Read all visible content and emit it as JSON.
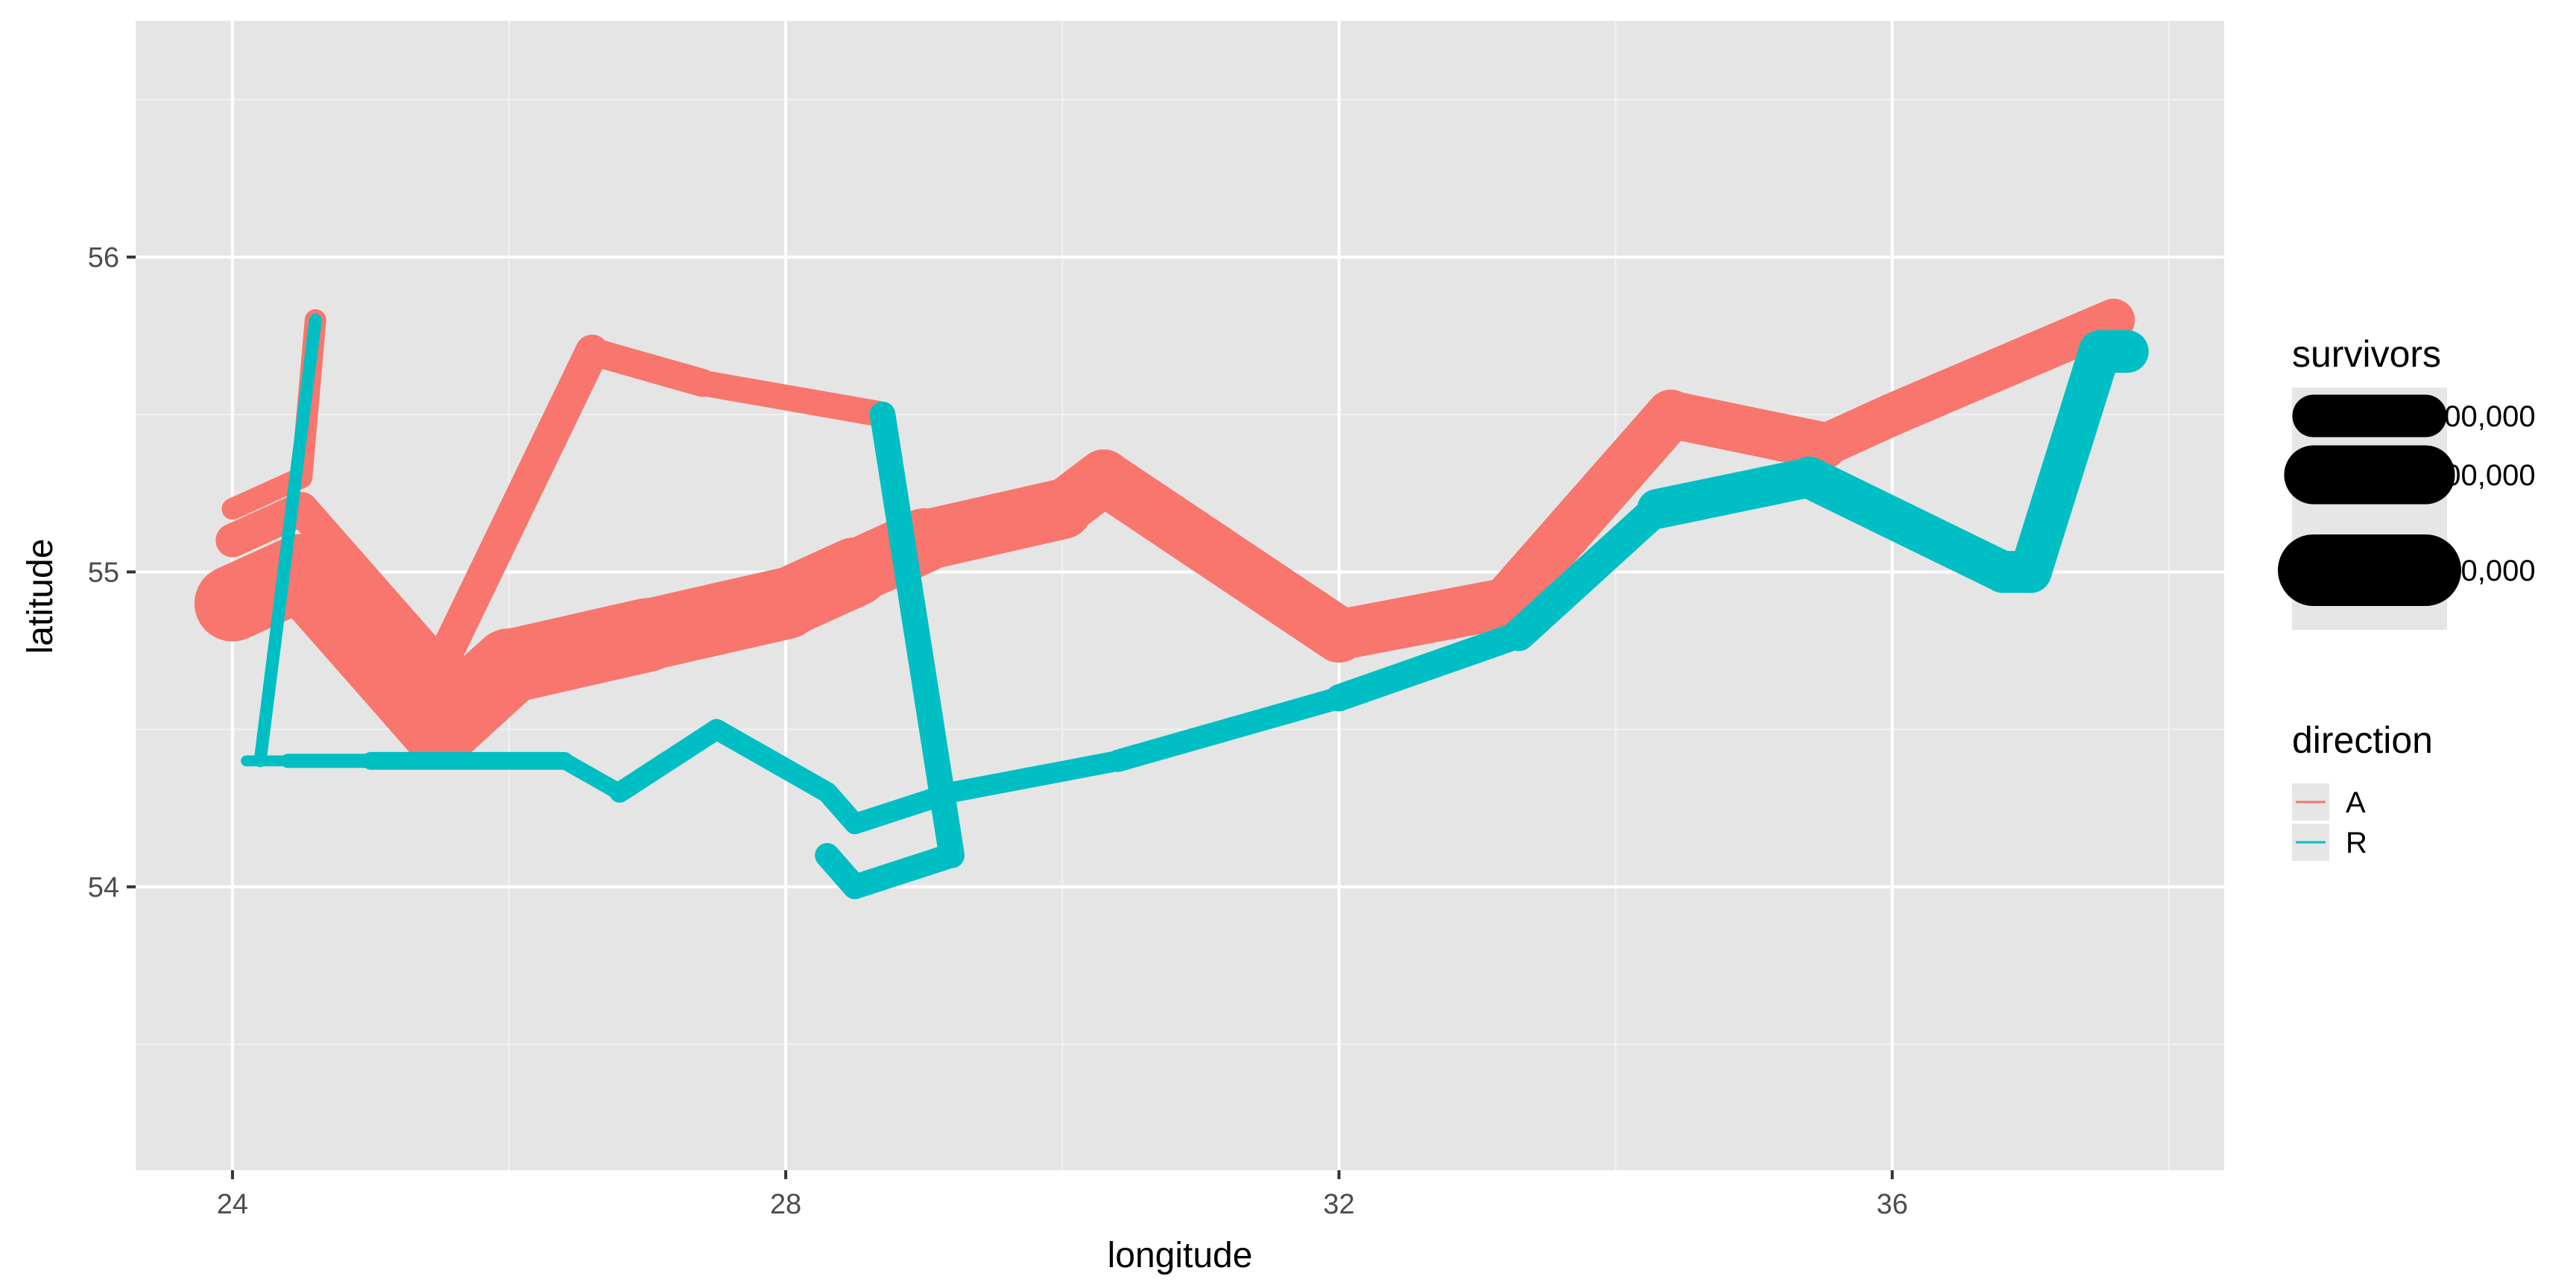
{
  "chart_data": {
    "type": "line",
    "title": "",
    "xlabel": "longitude",
    "ylabel": "latitude",
    "xlim": [
      23.3,
      38.4
    ],
    "ylim": [
      53.1,
      56.75
    ],
    "x_ticks": [
      24,
      28,
      32,
      36
    ],
    "y_ticks": [
      54,
      55,
      56
    ],
    "x_minor": [
      26,
      30,
      34,
      38
    ],
    "y_minor": [
      53.5,
      54.5,
      55.5,
      56.5
    ],
    "grid": true,
    "panel_color": "#e5e5e5",
    "legend_position": "right",
    "size_legend": {
      "title": "survivors",
      "breaks": [
        100000,
        200000,
        300000
      ],
      "labels": [
        "100,000",
        "200,000",
        "300,000"
      ]
    },
    "color_legend": {
      "title": "direction",
      "entries": [
        {
          "key": "A",
          "label": "A",
          "color": "#F8766D"
        },
        {
          "key": "R",
          "label": "R",
          "color": "#00BFC4"
        }
      ]
    },
    "series": [
      {
        "direction": "A",
        "color": "#F8766D",
        "points": [
          {
            "x": 24.0,
            "y": 54.9,
            "survivors": 340000
          },
          {
            "x": 24.5,
            "y": 55.0,
            "survivors": 340000
          },
          {
            "x": 25.5,
            "y": 54.5,
            "survivors": 340000
          },
          {
            "x": 26.0,
            "y": 54.7,
            "survivors": 320000
          },
          {
            "x": 27.0,
            "y": 54.8,
            "survivors": 300000
          },
          {
            "x": 28.0,
            "y": 54.9,
            "survivors": 280000
          },
          {
            "x": 28.5,
            "y": 55.0,
            "survivors": 240000
          },
          {
            "x": 29.0,
            "y": 55.1,
            "survivors": 210000
          },
          {
            "x": 30.0,
            "y": 55.2,
            "survivors": 180000
          },
          {
            "x": 30.3,
            "y": 55.3,
            "survivors": 175000
          },
          {
            "x": 32.0,
            "y": 54.8,
            "survivors": 145000
          },
          {
            "x": 33.2,
            "y": 54.9,
            "survivors": 140000
          },
          {
            "x": 34.4,
            "y": 55.5,
            "survivors": 127100
          },
          {
            "x": 35.5,
            "y": 55.4,
            "survivors": 100000
          },
          {
            "x": 36.0,
            "y": 55.5,
            "survivors": 100000
          },
          {
            "x": 37.6,
            "y": 55.8,
            "survivors": 100000
          }
        ]
      },
      {
        "direction": "R",
        "color": "#00BFC4",
        "points": [
          {
            "x": 37.7,
            "y": 55.7,
            "survivors": 100000
          },
          {
            "x": 37.5,
            "y": 55.7,
            "survivors": 98000
          },
          {
            "x": 37.0,
            "y": 55.0,
            "survivors": 97000
          },
          {
            "x": 36.8,
            "y": 55.0,
            "survivors": 96000
          },
          {
            "x": 35.4,
            "y": 55.3,
            "survivors": 87000
          },
          {
            "x": 34.3,
            "y": 55.2,
            "survivors": 55000
          },
          {
            "x": 33.3,
            "y": 54.8,
            "survivors": 37000
          },
          {
            "x": 32.0,
            "y": 54.6,
            "survivors": 24000
          },
          {
            "x": 30.4,
            "y": 54.4,
            "survivors": 20000
          },
          {
            "x": 29.2,
            "y": 54.3,
            "survivors": 20000
          },
          {
            "x": 28.5,
            "y": 54.2,
            "survivors": 20000
          },
          {
            "x": 28.3,
            "y": 54.3,
            "survivors": 20000
          },
          {
            "x": 27.5,
            "y": 54.5,
            "survivors": 20000
          },
          {
            "x": 26.8,
            "y": 54.3,
            "survivors": 12000
          },
          {
            "x": 26.4,
            "y": 54.4,
            "survivors": 14000
          },
          {
            "x": 25.0,
            "y": 54.4,
            "survivors": 8000
          },
          {
            "x": 24.4,
            "y": 54.4,
            "survivors": 4000
          },
          {
            "x": 24.2,
            "y": 54.4,
            "survivors": 4000
          },
          {
            "x": 24.1,
            "y": 54.4,
            "survivors": 4000
          }
        ]
      },
      {
        "direction": "A",
        "color": "#F8766D",
        "points": [
          {
            "x": 24.0,
            "y": 55.1,
            "survivors": 60000
          },
          {
            "x": 24.5,
            "y": 55.2,
            "survivors": 60000
          },
          {
            "x": 25.5,
            "y": 54.7,
            "survivors": 60000
          },
          {
            "x": 26.6,
            "y": 55.7,
            "survivors": 40000
          },
          {
            "x": 27.4,
            "y": 55.6,
            "survivors": 33000
          },
          {
            "x": 28.7,
            "y": 55.5,
            "survivors": 33000
          }
        ]
      },
      {
        "direction": "R",
        "color": "#00BFC4",
        "points": [
          {
            "x": 28.7,
            "y": 55.5,
            "survivors": 33000
          },
          {
            "x": 29.2,
            "y": 54.1,
            "survivors": 30000
          },
          {
            "x": 28.5,
            "y": 54.0,
            "survivors": 30000
          },
          {
            "x": 28.3,
            "y": 54.1,
            "survivors": 28000
          }
        ]
      },
      {
        "direction": "A",
        "color": "#F8766D",
        "points": [
          {
            "x": 24.0,
            "y": 55.2,
            "survivors": 22000
          },
          {
            "x": 24.5,
            "y": 55.3,
            "survivors": 22000
          },
          {
            "x": 24.6,
            "y": 55.8,
            "survivors": 6000
          }
        ]
      },
      {
        "direction": "R",
        "color": "#00BFC4",
        "points": [
          {
            "x": 24.6,
            "y": 55.8,
            "survivors": 6000
          },
          {
            "x": 24.2,
            "y": 54.4,
            "survivors": 6000
          }
        ]
      }
    ]
  }
}
